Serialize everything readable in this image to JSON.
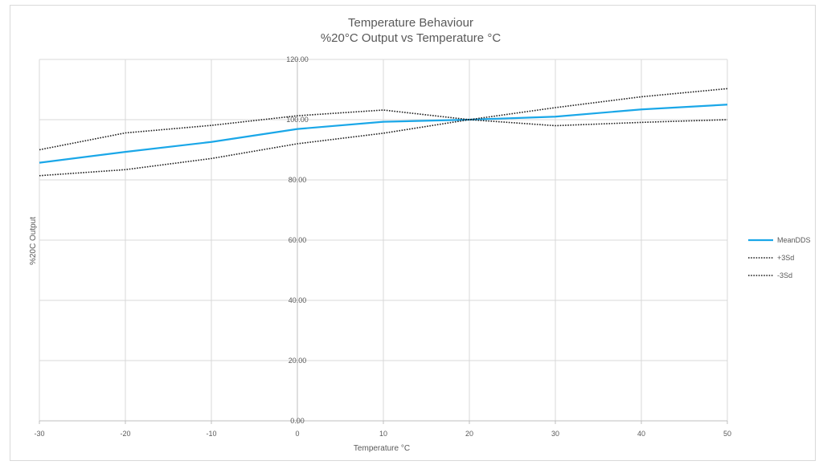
{
  "chart_data": {
    "type": "line",
    "title": "Temperature Behaviour",
    "subtitle": "%20°C Output vs Temperature °C",
    "xlabel": "Temperature °C",
    "ylabel": "%20C Output",
    "x": [
      -30,
      -20,
      -10,
      0,
      10,
      20,
      30,
      40,
      50
    ],
    "xlim": [
      -30,
      50
    ],
    "ylim": [
      0,
      120
    ],
    "x_ticks": [
      "-30",
      "-20",
      "-10",
      "0",
      "10",
      "20",
      "30",
      "40",
      "50"
    ],
    "y_ticks": [
      "0.00",
      "20.00",
      "40.00",
      "60.00",
      "80.00",
      "100.00",
      "120.00"
    ],
    "grid": true,
    "legend_position": "right",
    "series": [
      {
        "name": "MeanDDS",
        "color": "#1aa7e8",
        "style": "solid",
        "values": [
          85.7,
          89.3,
          92.6,
          96.9,
          99.3,
          100.0,
          101.0,
          103.4,
          105.0
        ]
      },
      {
        "name": "+3Sd",
        "color": "#1f1f1f",
        "style": "dotted",
        "values": [
          90.0,
          95.6,
          98.1,
          101.3,
          103.2,
          100.0,
          104.0,
          107.6,
          110.3
        ]
      },
      {
        "name": "-3Sd",
        "color": "#1f1f1f",
        "style": "dotted",
        "values": [
          81.4,
          83.4,
          87.1,
          92.0,
          95.5,
          100.0,
          98.0,
          99.1,
          100.0
        ]
      }
    ]
  }
}
